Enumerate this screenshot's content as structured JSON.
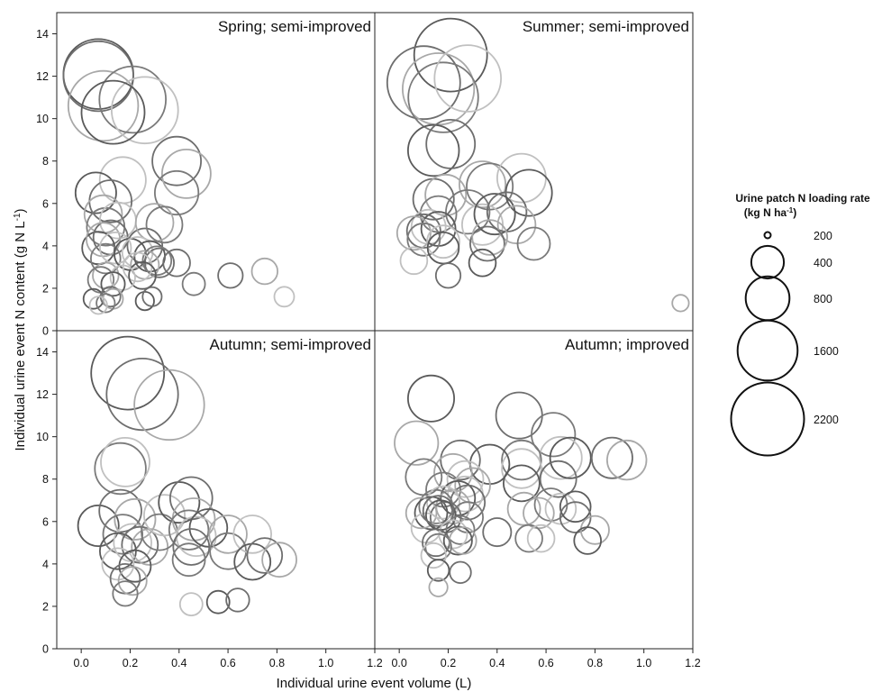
{
  "figure": {
    "ylabel": "Individual urine event N content (g N L",
    "ylabel_sup": "-1",
    "ylabel_end": ")",
    "xlabel": "Individual urine event volume (L)"
  },
  "legend": {
    "title_line1": "Urine patch N loading rate",
    "title_line2_pre": "(kg N ha",
    "title_line2_sup": "-1",
    "title_line2_post": ")",
    "entries": [
      {
        "label": "200",
        "size": 200
      },
      {
        "label": "400",
        "size": 400
      },
      {
        "label": "800",
        "size": 800
      },
      {
        "label": "1600",
        "size": 1600
      },
      {
        "label": "2200",
        "size": 2200
      }
    ]
  },
  "chart_data": [
    {
      "type": "scatter",
      "title": "Spring; semi-improved",
      "xlim": [
        -0.1,
        1.2
      ],
      "ylim": [
        0,
        15
      ],
      "xticks": [
        "0.0",
        "0.2",
        "0.4",
        "0.6",
        "0.8",
        "1.0",
        "1.2"
      ],
      "yticks": [
        "0",
        "2",
        "4",
        "6",
        "8",
        "10",
        "12",
        "14"
      ],
      "points": [
        {
          "x": 0.07,
          "y": 12.1,
          "size": 2000
        },
        {
          "x": 0.07,
          "y": 12.0,
          "size": 2000
        },
        {
          "x": 0.09,
          "y": 10.6,
          "size": 2000
        },
        {
          "x": 0.21,
          "y": 10.9,
          "size": 1800
        },
        {
          "x": 0.26,
          "y": 10.4,
          "size": 1800
        },
        {
          "x": 0.13,
          "y": 10.3,
          "size": 1600
        },
        {
          "x": 0.39,
          "y": 8.0,
          "size": 900
        },
        {
          "x": 0.43,
          "y": 7.4,
          "size": 900
        },
        {
          "x": 0.39,
          "y": 6.5,
          "size": 700
        },
        {
          "x": 0.17,
          "y": 7.1,
          "size": 800
        },
        {
          "x": 0.06,
          "y": 6.5,
          "size": 600
        },
        {
          "x": 0.12,
          "y": 6.1,
          "size": 650
        },
        {
          "x": 0.09,
          "y": 5.5,
          "size": 500
        },
        {
          "x": 0.1,
          "y": 4.9,
          "size": 500
        },
        {
          "x": 0.15,
          "y": 5.2,
          "size": 450
        },
        {
          "x": 0.07,
          "y": 3.9,
          "size": 350
        },
        {
          "x": 0.12,
          "y": 4.4,
          "size": 400
        },
        {
          "x": 0.09,
          "y": 4.3,
          "size": 380
        },
        {
          "x": 0.1,
          "y": 3.4,
          "size": 280
        },
        {
          "x": 0.14,
          "y": 3.9,
          "size": 320
        },
        {
          "x": 0.2,
          "y": 3.6,
          "size": 330
        },
        {
          "x": 0.26,
          "y": 4.0,
          "size": 420
        },
        {
          "x": 0.3,
          "y": 5.1,
          "size": 500
        },
        {
          "x": 0.34,
          "y": 5.0,
          "size": 450
        },
        {
          "x": 0.23,
          "y": 3.7,
          "size": 300
        },
        {
          "x": 0.28,
          "y": 3.5,
          "size": 300
        },
        {
          "x": 0.32,
          "y": 3.2,
          "size": 270
        },
        {
          "x": 0.26,
          "y": 3.1,
          "size": 250
        },
        {
          "x": 0.31,
          "y": 3.3,
          "size": 260
        },
        {
          "x": 0.23,
          "y": 3.0,
          "size": 260
        },
        {
          "x": 0.25,
          "y": 2.6,
          "size": 220
        },
        {
          "x": 0.39,
          "y": 3.2,
          "size": 220
        },
        {
          "x": 0.1,
          "y": 2.6,
          "size": 200
        },
        {
          "x": 0.08,
          "y": 2.4,
          "size": 200
        },
        {
          "x": 0.17,
          "y": 2.5,
          "size": 180
        },
        {
          "x": 0.13,
          "y": 2.2,
          "size": 160
        },
        {
          "x": 0.61,
          "y": 2.6,
          "size": 180
        },
        {
          "x": 0.75,
          "y": 2.8,
          "size": 200
        },
        {
          "x": 0.46,
          "y": 2.2,
          "size": 140
        },
        {
          "x": 0.83,
          "y": 1.6,
          "size": 100
        },
        {
          "x": 0.05,
          "y": 1.5,
          "size": 100
        },
        {
          "x": 0.12,
          "y": 1.6,
          "size": 100
        },
        {
          "x": 0.13,
          "y": 1.5,
          "size": 100
        },
        {
          "x": 0.1,
          "y": 1.3,
          "size": 80
        },
        {
          "x": 0.07,
          "y": 1.2,
          "size": 70
        },
        {
          "x": 0.26,
          "y": 1.4,
          "size": 80
        },
        {
          "x": 0.29,
          "y": 1.6,
          "size": 90
        }
      ]
    },
    {
      "type": "scatter",
      "title": "Summer; semi-improved",
      "xlim": [
        -0.1,
        1.2
      ],
      "ylim": [
        0,
        15
      ],
      "xticks": [
        "0.0",
        "0.2",
        "0.4",
        "0.6",
        "0.8",
        "1.0",
        "1.2"
      ],
      "yticks": [],
      "points": [
        {
          "x": 0.21,
          "y": 13.0,
          "size": 2200
        },
        {
          "x": 0.1,
          "y": 11.7,
          "size": 2200
        },
        {
          "x": 0.16,
          "y": 11.4,
          "size": 2100
        },
        {
          "x": 0.18,
          "y": 11.0,
          "size": 2000
        },
        {
          "x": 0.28,
          "y": 11.9,
          "size": 1800
        },
        {
          "x": 0.14,
          "y": 8.5,
          "size": 1000
        },
        {
          "x": 0.21,
          "y": 8.8,
          "size": 900
        },
        {
          "x": 0.34,
          "y": 6.9,
          "size": 800
        },
        {
          "x": 0.37,
          "y": 6.8,
          "size": 800
        },
        {
          "x": 0.5,
          "y": 7.2,
          "size": 900
        },
        {
          "x": 0.53,
          "y": 6.5,
          "size": 800
        },
        {
          "x": 0.14,
          "y": 6.2,
          "size": 600
        },
        {
          "x": 0.19,
          "y": 6.4,
          "size": 600
        },
        {
          "x": 0.28,
          "y": 5.6,
          "size": 700
        },
        {
          "x": 0.34,
          "y": 5.0,
          "size": 600
        },
        {
          "x": 0.39,
          "y": 5.5,
          "size": 600
        },
        {
          "x": 0.44,
          "y": 5.6,
          "size": 550
        },
        {
          "x": 0.48,
          "y": 5.0,
          "size": 500
        },
        {
          "x": 0.16,
          "y": 5.5,
          "size": 450
        },
        {
          "x": 0.12,
          "y": 4.9,
          "size": 400
        },
        {
          "x": 0.16,
          "y": 4.8,
          "size": 400
        },
        {
          "x": 0.1,
          "y": 4.7,
          "size": 380
        },
        {
          "x": 0.06,
          "y": 4.6,
          "size": 380
        },
        {
          "x": 0.1,
          "y": 4.3,
          "size": 350
        },
        {
          "x": 0.18,
          "y": 4.2,
          "size": 350
        },
        {
          "x": 0.18,
          "y": 3.9,
          "size": 320
        },
        {
          "x": 0.36,
          "y": 4.1,
          "size": 400
        },
        {
          "x": 0.37,
          "y": 4.4,
          "size": 420
        },
        {
          "x": 0.55,
          "y": 4.1,
          "size": 350
        },
        {
          "x": 0.06,
          "y": 3.3,
          "size": 220
        },
        {
          "x": 0.34,
          "y": 3.2,
          "size": 220
        },
        {
          "x": 0.2,
          "y": 2.6,
          "size": 180
        },
        {
          "x": 1.15,
          "y": 1.3,
          "size": 60
        }
      ]
    },
    {
      "type": "scatter",
      "title": "Autumn; semi-improved",
      "xlim": [
        -0.1,
        1.2
      ],
      "ylim": [
        0,
        15
      ],
      "xticks": [
        "0.0",
        "0.2",
        "0.4",
        "0.6",
        "0.8",
        "1.0",
        "1.2"
      ],
      "yticks": [
        "0",
        "2",
        "4",
        "6",
        "8",
        "10",
        "12",
        "14"
      ],
      "points": [
        {
          "x": 0.19,
          "y": 13.0,
          "size": 2200
        },
        {
          "x": 0.25,
          "y": 12.0,
          "size": 2100
        },
        {
          "x": 0.36,
          "y": 11.5,
          "size": 2000
        },
        {
          "x": 0.16,
          "y": 8.5,
          "size": 1000
        },
        {
          "x": 0.18,
          "y": 8.8,
          "size": 900
        },
        {
          "x": 0.07,
          "y": 5.8,
          "size": 600
        },
        {
          "x": 0.16,
          "y": 6.5,
          "size": 650
        },
        {
          "x": 0.22,
          "y": 6.1,
          "size": 600
        },
        {
          "x": 0.17,
          "y": 5.4,
          "size": 550
        },
        {
          "x": 0.21,
          "y": 5.0,
          "size": 500
        },
        {
          "x": 0.15,
          "y": 4.6,
          "size": 450
        },
        {
          "x": 0.24,
          "y": 4.9,
          "size": 450
        },
        {
          "x": 0.28,
          "y": 4.8,
          "size": 450
        },
        {
          "x": 0.32,
          "y": 5.5,
          "size": 450
        },
        {
          "x": 0.34,
          "y": 6.3,
          "size": 600
        },
        {
          "x": 0.4,
          "y": 6.9,
          "size": 600
        },
        {
          "x": 0.45,
          "y": 7.1,
          "size": 650
        },
        {
          "x": 0.46,
          "y": 6.1,
          "size": 650
        },
        {
          "x": 0.44,
          "y": 5.6,
          "size": 550
        },
        {
          "x": 0.47,
          "y": 5.3,
          "size": 550
        },
        {
          "x": 0.52,
          "y": 5.7,
          "size": 500
        },
        {
          "x": 0.45,
          "y": 4.8,
          "size": 450
        },
        {
          "x": 0.6,
          "y": 5.4,
          "size": 500
        },
        {
          "x": 0.6,
          "y": 4.6,
          "size": 450
        },
        {
          "x": 0.7,
          "y": 5.4,
          "size": 500
        },
        {
          "x": 0.7,
          "y": 4.1,
          "size": 450
        },
        {
          "x": 0.75,
          "y": 4.4,
          "size": 420
        },
        {
          "x": 0.81,
          "y": 4.2,
          "size": 400
        },
        {
          "x": 0.44,
          "y": 4.2,
          "size": 350
        },
        {
          "x": 0.15,
          "y": 4.0,
          "size": 330
        },
        {
          "x": 0.22,
          "y": 3.9,
          "size": 330
        },
        {
          "x": 0.18,
          "y": 3.3,
          "size": 280
        },
        {
          "x": 0.21,
          "y": 3.2,
          "size": 250
        },
        {
          "x": 0.18,
          "y": 2.6,
          "size": 180
        },
        {
          "x": 0.45,
          "y": 2.1,
          "size": 140
        },
        {
          "x": 0.56,
          "y": 2.2,
          "size": 140
        },
        {
          "x": 0.64,
          "y": 2.3,
          "size": 150
        }
      ]
    },
    {
      "type": "scatter",
      "title": "Autumn; improved",
      "xlim": [
        -0.1,
        1.2
      ],
      "ylim": [
        0,
        15
      ],
      "xticks": [
        "0.0",
        "0.2",
        "0.4",
        "0.6",
        "0.8",
        "1.0",
        "1.2"
      ],
      "yticks": [],
      "points": [
        {
          "x": 0.13,
          "y": 11.8,
          "size": 800
        },
        {
          "x": 0.49,
          "y": 11.0,
          "size": 800
        },
        {
          "x": 0.07,
          "y": 9.7,
          "size": 700
        },
        {
          "x": 0.63,
          "y": 10.1,
          "size": 700
        },
        {
          "x": 0.66,
          "y": 9.0,
          "size": 650
        },
        {
          "x": 0.7,
          "y": 9.0,
          "size": 600
        },
        {
          "x": 0.87,
          "y": 9.0,
          "size": 600
        },
        {
          "x": 0.93,
          "y": 8.9,
          "size": 550
        },
        {
          "x": 0.5,
          "y": 8.9,
          "size": 550
        },
        {
          "x": 0.5,
          "y": 8.5,
          "size": 550
        },
        {
          "x": 0.37,
          "y": 8.7,
          "size": 550
        },
        {
          "x": 0.25,
          "y": 8.9,
          "size": 550
        },
        {
          "x": 0.22,
          "y": 8.3,
          "size": 500
        },
        {
          "x": 0.1,
          "y": 8.1,
          "size": 450
        },
        {
          "x": 0.27,
          "y": 8.0,
          "size": 450
        },
        {
          "x": 0.5,
          "y": 7.8,
          "size": 450
        },
        {
          "x": 0.65,
          "y": 8.0,
          "size": 450
        },
        {
          "x": 0.3,
          "y": 7.7,
          "size": 420
        },
        {
          "x": 0.18,
          "y": 7.5,
          "size": 400
        },
        {
          "x": 0.27,
          "y": 7.3,
          "size": 420
        },
        {
          "x": 0.24,
          "y": 7.1,
          "size": 400
        },
        {
          "x": 0.28,
          "y": 6.9,
          "size": 400
        },
        {
          "x": 0.22,
          "y": 6.7,
          "size": 380
        },
        {
          "x": 0.15,
          "y": 6.7,
          "size": 380
        },
        {
          "x": 0.18,
          "y": 6.9,
          "size": 350
        },
        {
          "x": 0.13,
          "y": 6.4,
          "size": 350
        },
        {
          "x": 0.19,
          "y": 6.2,
          "size": 300
        },
        {
          "x": 0.09,
          "y": 6.4,
          "size": 300
        },
        {
          "x": 0.28,
          "y": 6.2,
          "size": 300
        },
        {
          "x": 0.11,
          "y": 5.7,
          "size": 280
        },
        {
          "x": 0.17,
          "y": 6.3,
          "size": 280
        },
        {
          "x": 0.16,
          "y": 6.5,
          "size": 300
        },
        {
          "x": 0.51,
          "y": 6.6,
          "size": 350
        },
        {
          "x": 0.62,
          "y": 6.8,
          "size": 350
        },
        {
          "x": 0.66,
          "y": 6.6,
          "size": 300
        },
        {
          "x": 0.72,
          "y": 6.7,
          "size": 300
        },
        {
          "x": 0.72,
          "y": 6.2,
          "size": 300
        },
        {
          "x": 0.57,
          "y": 6.4,
          "size": 300
        },
        {
          "x": 0.25,
          "y": 5.6,
          "size": 250
        },
        {
          "x": 0.22,
          "y": 5.4,
          "size": 250
        },
        {
          "x": 0.24,
          "y": 5.1,
          "size": 250
        },
        {
          "x": 0.4,
          "y": 5.5,
          "size": 250
        },
        {
          "x": 0.8,
          "y": 5.6,
          "size": 250
        },
        {
          "x": 0.53,
          "y": 5.2,
          "size": 220
        },
        {
          "x": 0.58,
          "y": 5.2,
          "size": 220
        },
        {
          "x": 0.77,
          "y": 5.1,
          "size": 220
        },
        {
          "x": 0.15,
          "y": 5.0,
          "size": 220
        },
        {
          "x": 0.26,
          "y": 5.1,
          "size": 220
        },
        {
          "x": 0.16,
          "y": 4.8,
          "size": 200
        },
        {
          "x": 0.14,
          "y": 4.4,
          "size": 180
        },
        {
          "x": 0.16,
          "y": 3.7,
          "size": 120
        },
        {
          "x": 0.25,
          "y": 3.6,
          "size": 120
        },
        {
          "x": 0.16,
          "y": 2.9,
          "size": 80
        }
      ]
    }
  ]
}
